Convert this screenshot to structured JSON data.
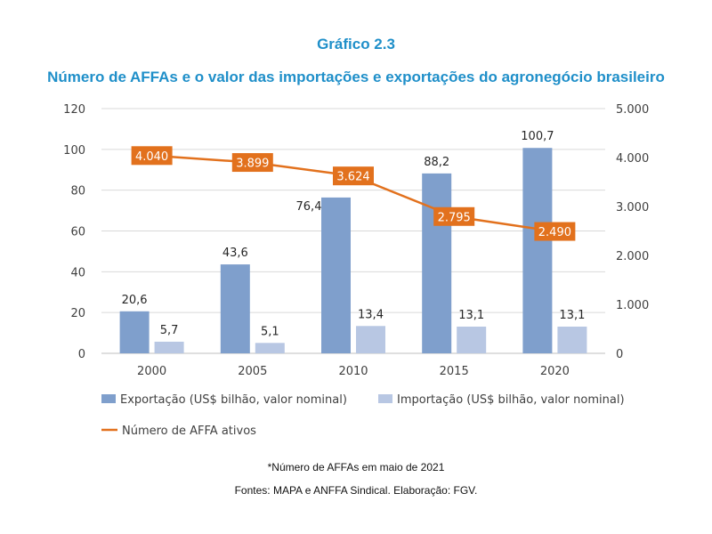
{
  "header": {
    "title": "Gráfico 2.3",
    "subtitle": "Número de AFFAs e o valor das importações e exportações do agronegócio brasileiro"
  },
  "footer": {
    "note": "*Número de AFFAs em maio de 2021",
    "source": "Fontes: MAPA e ANFFA Sindical. Elaboração: FGV."
  },
  "colors": {
    "title": "#1f8fc9",
    "exportacao": "#7f9fcc",
    "importacao": "#b8c7e3",
    "affa": "#e2711d",
    "grid": "#d9d9d9"
  },
  "chart_data": {
    "type": "bar",
    "categories": [
      "2000",
      "2005",
      "2010",
      "2015",
      "2020"
    ],
    "y_left": {
      "ylim": [
        0,
        120
      ],
      "ticks": [
        "0",
        "20",
        "40",
        "60",
        "80",
        "100",
        "120"
      ]
    },
    "y_right": {
      "ylim": [
        0,
        5000
      ],
      "ticks": [
        "0",
        "1.000",
        "2.000",
        "3.000",
        "4.000",
        "5.000"
      ]
    },
    "grid": true,
    "legend_position": "bottom",
    "series": [
      {
        "name": "Exportação (US$ bilhão, valor nominal)",
        "type": "bar",
        "axis": "left",
        "values": [
          20.6,
          43.6,
          76.4,
          88.2,
          100.7
        ],
        "labels": [
          "20,6",
          "43,6",
          "76,4",
          "88,2",
          "100,7"
        ]
      },
      {
        "name": "Importação (US$ bilhão, valor nominal)",
        "type": "bar",
        "axis": "left",
        "values": [
          5.7,
          5.1,
          13.4,
          13.1,
          13.1
        ],
        "labels": [
          "5,7",
          "5,1",
          "13,4",
          "13,1",
          "13,1"
        ]
      },
      {
        "name": "Número de AFFA ativos",
        "type": "line",
        "axis": "right",
        "values": [
          4040,
          3899,
          3624,
          2795,
          2490
        ],
        "labels": [
          "4.040",
          "3.899",
          "3.624",
          "2.795",
          "2.490"
        ]
      }
    ]
  }
}
